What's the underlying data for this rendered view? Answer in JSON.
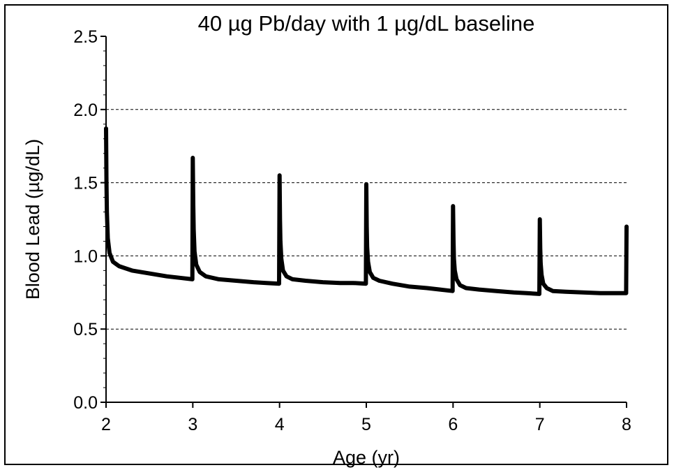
{
  "chart_data": {
    "type": "line",
    "title": "40 µg Pb/day with 1 µg/dL baseline",
    "xlabel": "Age (yr)",
    "ylabel": "Blood Lead (µg/dL)",
    "xlim": [
      2,
      8
    ],
    "ylim": [
      0,
      2.5
    ],
    "xticks": [
      "2",
      "3",
      "4",
      "5",
      "6",
      "7",
      "8"
    ],
    "yticks": [
      "0.0",
      "0.5",
      "1.0",
      "1.5",
      "2.0",
      "2.5"
    ],
    "grid": "horizontal dashed",
    "line_color": "#000000",
    "series": [
      {
        "x": [
          2.0,
          2.005,
          2.01,
          2.02,
          2.04,
          2.08,
          2.15,
          2.3,
          2.5,
          2.7,
          2.85,
          2.995,
          3.0,
          3.005,
          3.01,
          3.02,
          3.04,
          3.08,
          3.15,
          3.3,
          3.5,
          3.7,
          3.85,
          3.995,
          4.0,
          4.005,
          4.01,
          4.02,
          4.04,
          4.08,
          4.15,
          4.3,
          4.5,
          4.7,
          4.85,
          4.995,
          5.0,
          5.005,
          5.01,
          5.02,
          5.04,
          5.08,
          5.15,
          5.3,
          5.5,
          5.7,
          5.85,
          5.995,
          6.0,
          6.005,
          6.01,
          6.02,
          6.04,
          6.08,
          6.15,
          6.3,
          6.5,
          6.7,
          6.85,
          6.995,
          7.0,
          7.005,
          7.01,
          7.02,
          7.04,
          7.08,
          7.15,
          7.3,
          7.5,
          7.7,
          7.85,
          7.995,
          8.0
        ],
        "y": [
          1.87,
          1.5,
          1.3,
          1.12,
          1.02,
          0.96,
          0.93,
          0.9,
          0.88,
          0.86,
          0.85,
          0.84,
          1.67,
          1.35,
          1.18,
          1.03,
          0.94,
          0.89,
          0.86,
          0.84,
          0.83,
          0.82,
          0.815,
          0.81,
          1.55,
          1.25,
          1.1,
          0.98,
          0.9,
          0.86,
          0.84,
          0.83,
          0.82,
          0.815,
          0.815,
          0.81,
          1.49,
          1.2,
          1.06,
          0.96,
          0.89,
          0.85,
          0.83,
          0.81,
          0.79,
          0.78,
          0.77,
          0.76,
          1.34,
          1.1,
          0.98,
          0.9,
          0.84,
          0.8,
          0.78,
          0.77,
          0.76,
          0.75,
          0.745,
          0.74,
          1.25,
          1.05,
          0.95,
          0.87,
          0.81,
          0.78,
          0.76,
          0.755,
          0.75,
          0.745,
          0.745,
          0.745,
          1.2
        ]
      }
    ]
  }
}
